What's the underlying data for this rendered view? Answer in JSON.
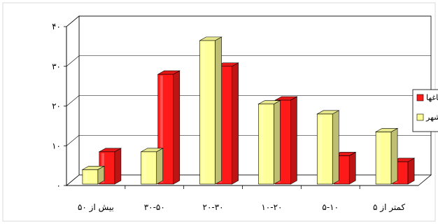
{
  "chart_data": {
    "type": "bar",
    "direction": "rtl",
    "categories": [
      "کمتر از ۵",
      "۵-۱۰",
      "۱۰-۲۰",
      "۲۰-۳۰",
      "۳۰-۵۰",
      "بیش از ۵۰"
    ],
    "series": [
      {
        "name": "باغها",
        "color": "#ff1a1a",
        "values": [
          6,
          7.5,
          21.5,
          30,
          28,
          8.5
        ]
      },
      {
        "name": "شهر",
        "color": "#ffff99",
        "values": [
          13.5,
          18,
          20.5,
          36.5,
          8.5,
          4
        ]
      }
    ],
    "yticks": [
      "۰",
      "۱۰",
      "۲۰",
      "۳۰",
      "۴۰"
    ],
    "ylim": [
      0,
      40
    ],
    "grid": true,
    "legend_position": "right",
    "bar_style": "3d-cylinder"
  }
}
